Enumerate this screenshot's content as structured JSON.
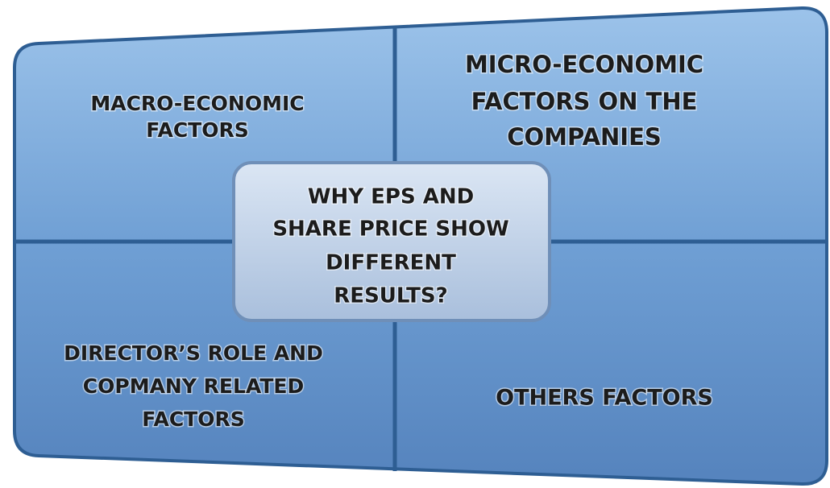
{
  "quadrants": [
    {
      "lines": [
        "MACRO-ECONOMIC",
        "FACTORS"
      ]
    },
    {
      "lines": [
        "MICRO-ECONOMIC",
        "FACTORS ON THE",
        "COMPANIES"
      ]
    },
    {
      "lines": [
        "DIRECTOR’S ROLE AND",
        "COPMANY RELATED",
        "FACTORS"
      ]
    },
    {
      "lines": [
        "OTHERS FACTORS"
      ]
    }
  ],
  "center": {
    "lines": [
      "WHY EPS AND",
      "SHARE PRICE SHOW",
      "DIFFERENT",
      "RESULTS?"
    ]
  }
}
